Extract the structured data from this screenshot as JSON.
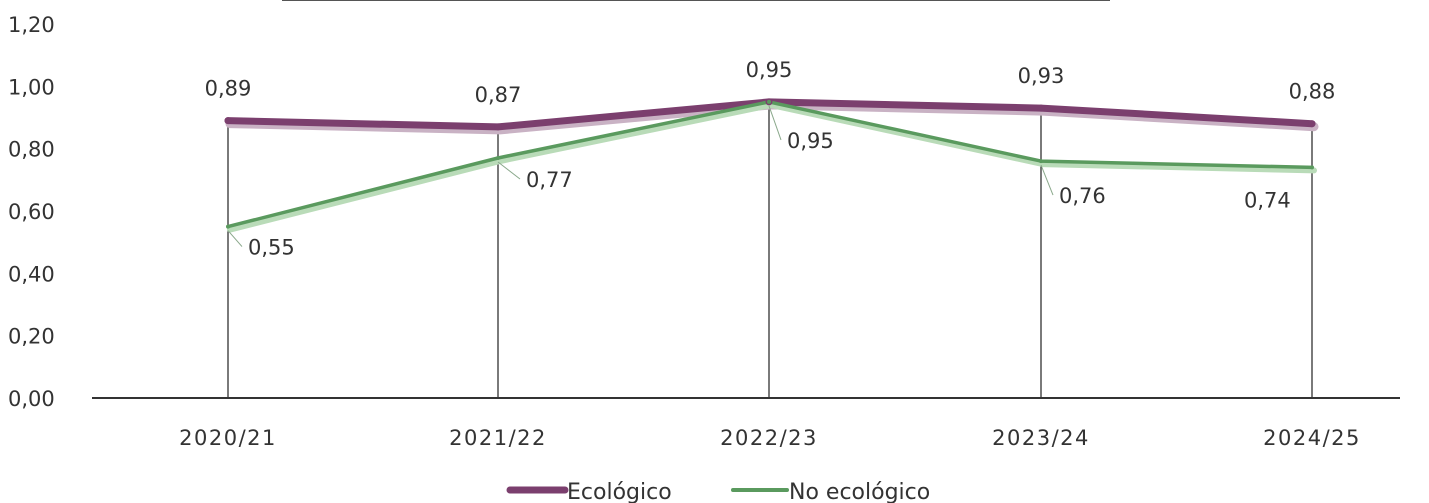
{
  "chart_data": {
    "type": "line",
    "categories": [
      "2020/21",
      "2021/22",
      "2022/23",
      "2023/24",
      "2024/25"
    ],
    "ylim": [
      0,
      1.2
    ],
    "yticks": [
      "0,00",
      "0,20",
      "0,40",
      "0,60",
      "0,80",
      "1,00",
      "1,20"
    ],
    "grid": false,
    "legend_position": "bottom",
    "series": [
      {
        "name": "Ecológico",
        "values": [
          0.89,
          0.87,
          0.95,
          0.93,
          0.88
        ],
        "labels": [
          "0,89",
          "0,87",
          "0,95",
          "0,93",
          "0,88"
        ],
        "color": "#7b3f6e"
      },
      {
        "name": "No ecológico",
        "values": [
          0.55,
          0.77,
          0.95,
          0.76,
          0.74
        ],
        "labels": [
          "0,55",
          "0,77",
          "0,95",
          "0,76",
          "0,74"
        ],
        "color": "#5a9a5e"
      }
    ]
  }
}
